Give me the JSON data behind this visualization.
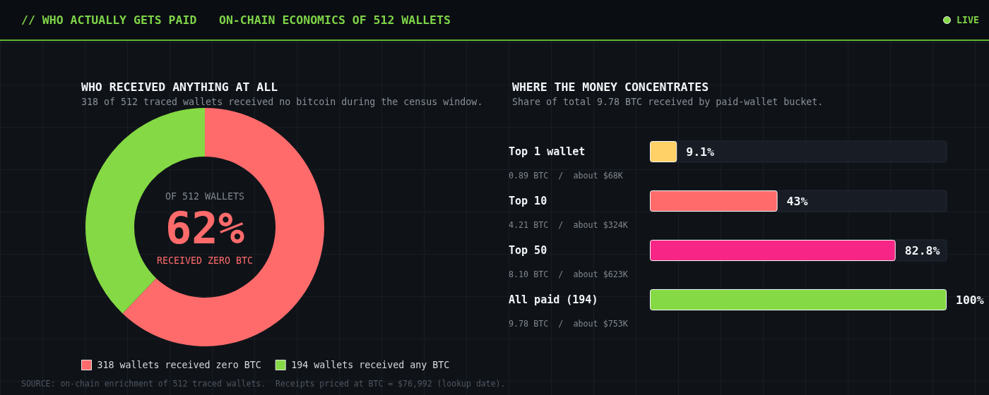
{
  "chart_data": [
    {
      "type": "other",
      "title": "// WHO ACTUALLY GETS PAID",
      "subtitle": "ON-CHAIN ECONOMICS OF 512 WALLETS",
      "annotations": [
        "LIVE",
        "SOURCE: on-chain enrichment of 512 traced wallets.  Receipts priced at BTC = $76,992 (lookup date)."
      ]
    },
    {
      "type": "donut",
      "title": "WHO RECEIVED ANYTHING AT ALL",
      "subtitle": "318 of 512 traced wallets received no bitcoin during the census window.",
      "categories": [
        "318 wallets received zero BTC",
        "194 wallets received any BTC"
      ],
      "values": [
        318,
        194
      ],
      "colors": [
        "#ff6b6b",
        "#84d944"
      ],
      "annotations": [
        "OF 512 WALLETS",
        "62%",
        "RECEIVED ZERO BTC"
      ],
      "legend": "bottom"
    },
    {
      "type": "bar",
      "orientation": "horizontal",
      "title": "WHERE THE MONEY CONCENTRATES",
      "subtitle": "Share of total 9.78 BTC received by paid-wallet bucket.",
      "categories": [
        "Top 1 wallet",
        "Top 10",
        "Top 50",
        "All paid (194)"
      ],
      "values": [
        9.1,
        43,
        82.8,
        100
      ],
      "colors": [
        "#ffd166",
        "#ff6b6b",
        "#f72585",
        "#84d944"
      ],
      "value_labels": [
        "9.1%",
        "43%",
        "82.8%",
        "100%"
      ],
      "annotations": [
        "0.89 BTC  /  about $68K",
        "4.21 BTC  /  about $324K",
        "8.10 BTC  /  about $623K",
        "9.78 BTC  /  about $753K"
      ]
    }
  ]
}
